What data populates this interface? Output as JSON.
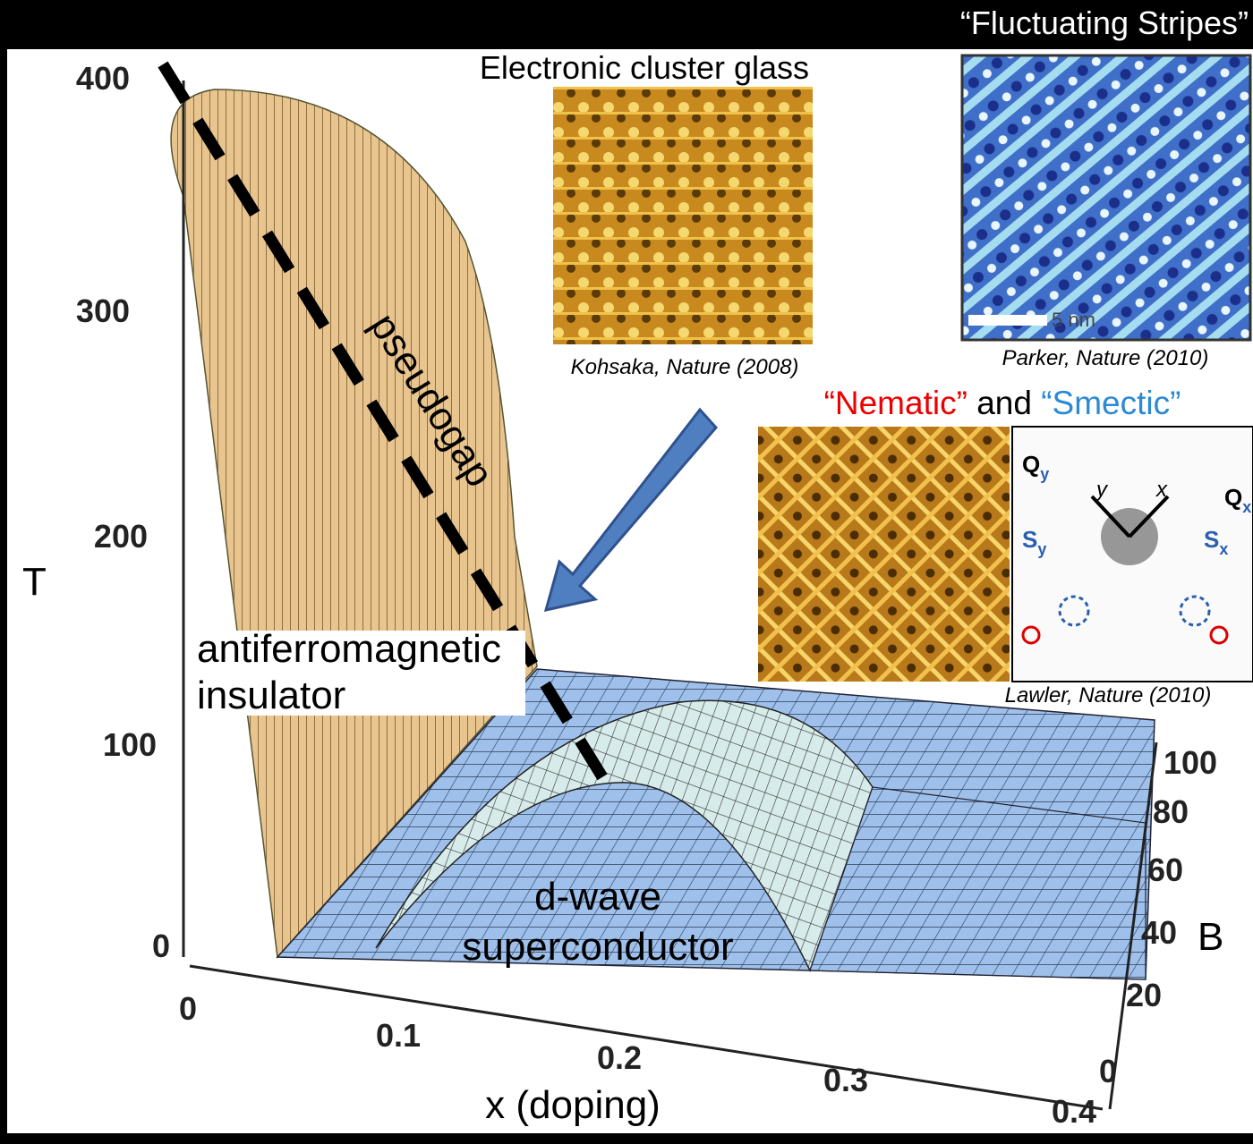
{
  "header": {
    "title": "“Fluctuating Stripes”"
  },
  "plot": {
    "t_axis": {
      "label": "T",
      "ticks": [
        "400",
        "300",
        "200",
        "100",
        "0"
      ]
    },
    "x_axis": {
      "label": "x (doping)",
      "ticks": [
        "0",
        "0.1",
        "0.2",
        "0.3",
        "0.4"
      ]
    },
    "b_axis": {
      "label": "B",
      "ticks": [
        "100",
        "80",
        "60",
        "40",
        "20",
        "0"
      ]
    },
    "regions": {
      "pseudogap": "pseudogap",
      "afm": [
        "antiferromagnetic",
        "insulator"
      ],
      "sc": [
        "d-wave",
        "superconductor"
      ]
    }
  },
  "insets": {
    "cluster_glass": {
      "title": "Electronic cluster glass",
      "citation": "Kohsaka, Nature (2008)"
    },
    "stripes": {
      "scale": "5 nm",
      "citation": "Parker, Nature (2010)"
    },
    "nematic": {
      "title": [
        "“Nematic”",
        "and",
        "“Smectic”"
      ],
      "citation": "Lawler, Nature (2010)",
      "fft_labels": [
        {
          "main": "Q",
          "sub": "y"
        },
        {
          "main": "S",
          "sub": "y"
        },
        {
          "main": "y"
        },
        {
          "main": "x"
        },
        {
          "main": "Q",
          "sub": "x"
        },
        {
          "main": "S",
          "sub": "x"
        }
      ]
    }
  }
}
